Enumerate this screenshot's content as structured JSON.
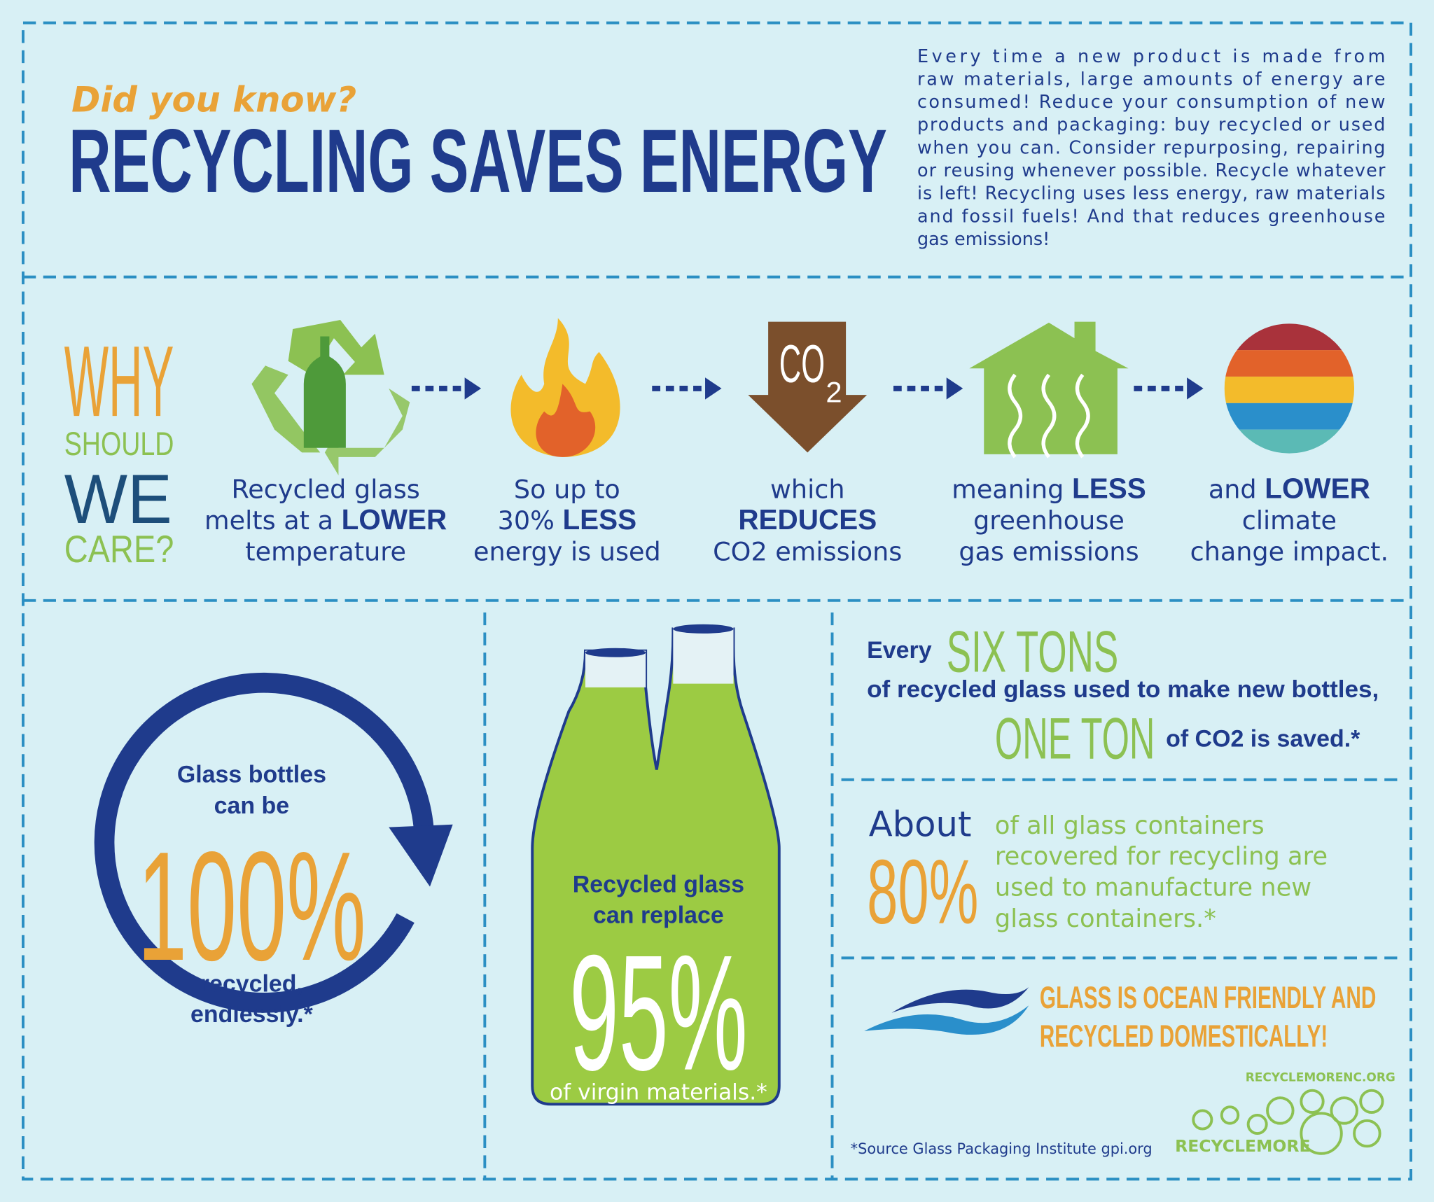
{
  "header": {
    "kicker": "Did you know?",
    "title": "RECYCLING SAVES ENERGY",
    "intro": [
      "Every time a new product is made from",
      "raw materials, large amounts of energy are",
      "consumed! Reduce your consumption of new",
      "products and packaging: buy recycled or used",
      "when you can. Consider repurposing, repairing",
      "or reusing whenever possible. Recycle whatever",
      "is left! Recycling uses less energy, raw materials",
      "and fossil fuels! And that reduces greenhouse",
      "gas emissions!"
    ]
  },
  "why": [
    "WHY",
    "SHOULD",
    "WE",
    "CARE?"
  ],
  "co2_icon": {
    "text": "CO",
    "sub": "2"
  },
  "steps": [
    {
      "lines": [
        [
          {
            "t": "Recycled glass"
          }
        ],
        [
          {
            "t": "melts at a "
          },
          {
            "t": "LOWER",
            "strong": true
          }
        ],
        [
          {
            "t": "temperature"
          }
        ]
      ]
    },
    {
      "lines": [
        [
          {
            "t": "So up to"
          }
        ],
        [
          {
            "t": "30% "
          },
          {
            "t": "LESS",
            "strong": true
          }
        ],
        [
          {
            "t": "energy is used"
          }
        ]
      ]
    },
    {
      "lines": [
        [
          {
            "t": "which"
          }
        ],
        [
          {
            "t": "REDUCES",
            "strong": true
          }
        ],
        [
          {
            "t": "CO2 emissions"
          }
        ]
      ]
    },
    {
      "lines": [
        [
          {
            "t": "meaning "
          },
          {
            "t": "LESS",
            "strong": true
          }
        ],
        [
          {
            "t": "greenhouse"
          }
        ],
        [
          {
            "t": "gas emissions"
          }
        ]
      ]
    },
    {
      "lines": [
        [
          {
            "t": "and "
          },
          {
            "t": "LOWER",
            "strong": true
          }
        ],
        [
          {
            "t": "climate"
          }
        ],
        [
          {
            "t": "change impact."
          }
        ]
      ]
    }
  ],
  "bottles": {
    "lead": [
      "Glass bottles",
      "can be"
    ],
    "figure": "100%",
    "tail": [
      "recycled,",
      "endlessly.*"
    ]
  },
  "replace": {
    "lead": [
      "Recycled glass",
      "can replace"
    ],
    "figure": "95%",
    "tail": "of virgin materials.*"
  },
  "six_tons": {
    "every": "Every",
    "six": "SIX TONS",
    "line": "of recycled glass used to make new bottles,",
    "one": "ONE TON",
    "saved": "of CO2 is saved.*"
  },
  "about": {
    "about": "About",
    "figure": "80%",
    "lines": [
      "of all glass containers",
      "recovered for recycling are",
      "used to manufacture new",
      "glass containers.*"
    ]
  },
  "ocean": [
    "GLASS IS OCEAN FRIENDLY AND",
    "RECYCLED DOMESTICALLY!"
  ],
  "source": "*Source Glass Packaging Institute gpi.org",
  "logo": {
    "url": "RECYCLEMORENC.ORG",
    "name": "RECYCLEMORE"
  }
}
